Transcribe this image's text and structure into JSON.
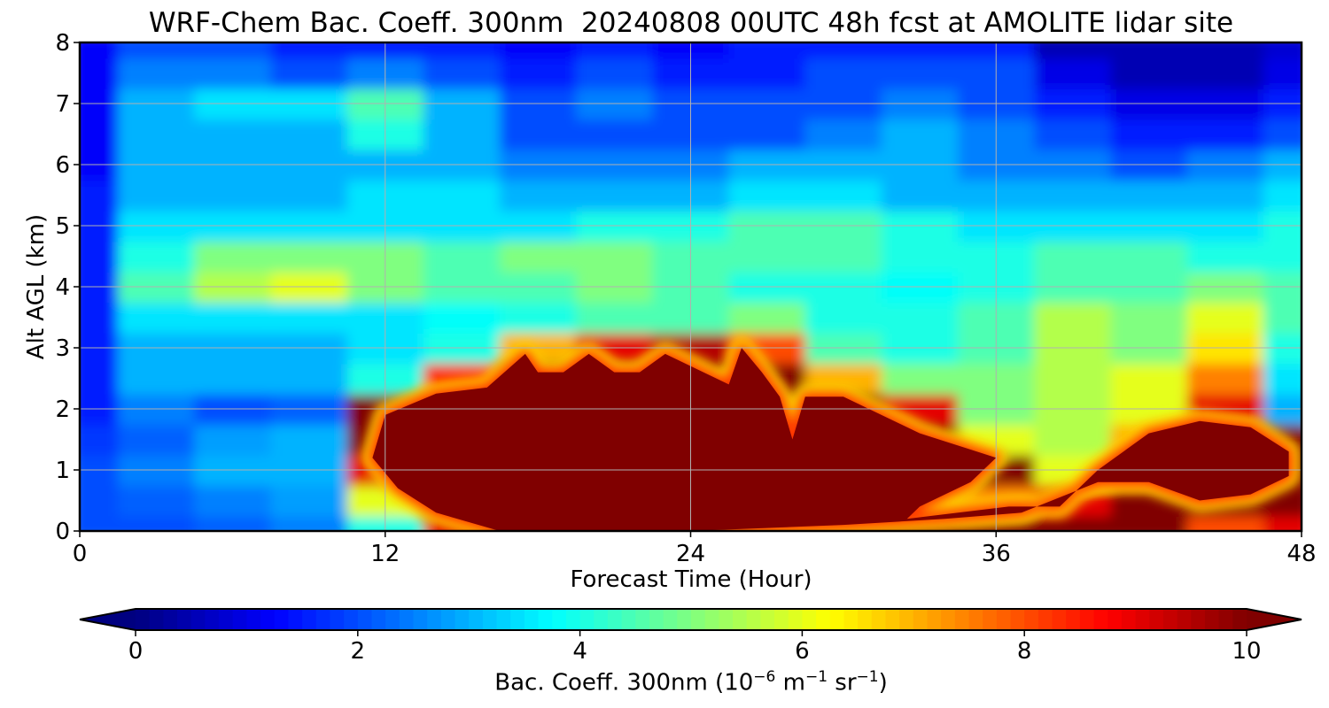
{
  "chart_data": {
    "type": "heatmap",
    "title": "WRF-Chem Bac. Coeff. 300nm  20240808 00UTC 48h fcst at AMOLITE lidar site",
    "xlabel": "Forecast Time (Hour)",
    "ylabel": "Alt AGL (km)",
    "xlim": [
      0,
      48
    ],
    "ylim": [
      0,
      8
    ],
    "xticks": [
      "0",
      "12",
      "24",
      "36",
      "48"
    ],
    "yticks": [
      "0",
      "1",
      "2",
      "3",
      "4",
      "5",
      "6",
      "7",
      "8"
    ],
    "grid": true,
    "colormap": "jet",
    "colorbar": {
      "orientation": "horizontal",
      "position": "bottom",
      "range": [
        0,
        10
      ],
      "extend": "both",
      "ticks": [
        "0",
        "2",
        "4",
        "6",
        "8",
        "10"
      ],
      "label_main": "Bac. Coeff. 300nm  (10",
      "label_exp1": "−6",
      "label_mid": " m",
      "label_exp2": "−1",
      "label_mid2": " sr",
      "label_exp3": "−1",
      "label_end": ")"
    },
    "x_hours": [
      0,
      3,
      6,
      9,
      12,
      15,
      18,
      21,
      24,
      27,
      30,
      33,
      36,
      39,
      42,
      45,
      48
    ],
    "y_km": [
      0,
      0.5,
      1,
      1.5,
      2,
      2.5,
      3,
      3.5,
      4,
      4.5,
      5,
      5.5,
      6,
      6.5,
      7,
      7.5,
      8
    ],
    "values": [
      [
        2.0,
        2.0,
        2.2,
        2.5,
        4.0,
        9.0,
        10.5,
        10.5,
        10.5,
        10.5,
        10.5,
        10.5,
        10.5,
        10.5,
        10.5,
        8.0,
        9.0
      ],
      [
        2.0,
        2.2,
        2.5,
        2.8,
        6.0,
        10.5,
        10.5,
        10.5,
        10.5,
        10.5,
        10.5,
        10.5,
        7.5,
        9.0,
        10.5,
        10.5,
        10.5
      ],
      [
        2.0,
        2.5,
        3.0,
        3.0,
        9.0,
        10.5,
        10.5,
        10.5,
        10.5,
        10.5,
        10.5,
        10.5,
        10.5,
        6.0,
        8.0,
        10.5,
        10.5
      ],
      [
        1.8,
        2.2,
        2.8,
        3.0,
        10.5,
        10.5,
        10.5,
        10.5,
        10.5,
        10.5,
        10.5,
        10.5,
        6.0,
        5.5,
        7.0,
        10.5,
        10.5
      ],
      [
        1.5,
        2.5,
        2.0,
        2.2,
        10.5,
        10.5,
        10.5,
        10.5,
        10.5,
        10.5,
        10.5,
        9.0,
        5.0,
        5.5,
        6.0,
        9.0,
        3.0
      ],
      [
        1.5,
        3.0,
        3.0,
        3.0,
        4.0,
        8.5,
        10.5,
        10.5,
        10.5,
        10.5,
        7.0,
        5.0,
        5.0,
        5.5,
        6.0,
        7.5,
        3.5
      ],
      [
        1.5,
        3.0,
        3.0,
        3.0,
        3.5,
        4.0,
        7.0,
        9.0,
        9.5,
        8.0,
        4.5,
        4.0,
        4.5,
        5.5,
        5.0,
        6.5,
        4.0
      ],
      [
        1.5,
        3.5,
        3.5,
        3.5,
        3.5,
        3.8,
        4.0,
        4.5,
        4.5,
        5.0,
        4.0,
        4.0,
        4.5,
        5.5,
        5.0,
        6.0,
        4.5
      ],
      [
        1.5,
        4.5,
        5.5,
        6.0,
        5.0,
        4.5,
        4.5,
        5.0,
        4.5,
        4.0,
        4.0,
        3.8,
        4.0,
        4.5,
        4.5,
        5.0,
        4.5
      ],
      [
        1.5,
        4.0,
        5.0,
        5.0,
        5.0,
        4.5,
        5.0,
        5.0,
        4.5,
        4.5,
        4.5,
        4.0,
        4.0,
        4.5,
        4.5,
        4.0,
        4.0
      ],
      [
        1.5,
        3.5,
        3.5,
        3.5,
        3.5,
        3.5,
        3.5,
        4.0,
        4.0,
        4.5,
        4.5,
        4.0,
        3.5,
        3.5,
        3.5,
        3.5,
        4.0
      ],
      [
        1.5,
        3.0,
        3.0,
        3.0,
        3.5,
        3.5,
        3.0,
        3.0,
        3.0,
        3.5,
        3.5,
        3.0,
        3.0,
        3.0,
        3.0,
        3.0,
        3.5
      ],
      [
        1.2,
        3.0,
        3.0,
        3.0,
        3.0,
        3.0,
        2.5,
        2.5,
        2.5,
        3.0,
        3.0,
        3.0,
        2.5,
        2.5,
        2.0,
        2.5,
        3.0
      ],
      [
        1.2,
        3.0,
        3.0,
        3.0,
        4.0,
        3.0,
        2.0,
        2.0,
        2.0,
        2.0,
        2.5,
        3.0,
        2.5,
        2.0,
        1.5,
        1.5,
        2.0
      ],
      [
        1.2,
        3.0,
        3.5,
        3.5,
        4.5,
        3.0,
        2.0,
        2.5,
        2.0,
        2.0,
        2.0,
        2.5,
        2.0,
        1.5,
        1.0,
        1.0,
        1.5
      ],
      [
        1.2,
        2.5,
        2.5,
        2.0,
        2.5,
        2.0,
        1.5,
        2.0,
        1.5,
        1.5,
        2.0,
        2.0,
        2.0,
        1.0,
        0.5,
        0.5,
        1.0
      ],
      [
        1.2,
        2.0,
        2.0,
        1.5,
        1.5,
        1.5,
        1.2,
        1.5,
        1.2,
        1.5,
        1.5,
        1.5,
        1.5,
        0.5,
        0.5,
        0.5,
        0.8
      ]
    ],
    "saturated_plume": {
      "value": "above 10",
      "hours": [
        11.5,
        12.0,
        14.0,
        16.0,
        17.5,
        18.0,
        19.0,
        20.0,
        21.0,
        22.0,
        23.0,
        24.5,
        25.5,
        26.0,
        26.8,
        27.5,
        28.0,
        28.5,
        30.0,
        33.0,
        36.0,
        35.0,
        33.0,
        32.5,
        33.5,
        36.5,
        38.5,
        40.0,
        42.0,
        44.0,
        46.0,
        47.5,
        47.5,
        46.0,
        44.0,
        42.0,
        40.0,
        37.0,
        34.0,
        30.0,
        24.0,
        20.0,
        16.5,
        14.0,
        12.5
      ],
      "alt_km": [
        1.2,
        1.9,
        2.25,
        2.35,
        2.9,
        2.6,
        2.6,
        2.9,
        2.6,
        2.6,
        2.9,
        2.6,
        2.4,
        3.0,
        2.6,
        2.2,
        1.5,
        2.2,
        2.2,
        1.6,
        1.2,
        0.8,
        0.4,
        0.2,
        0.25,
        0.4,
        0.4,
        1.0,
        1.6,
        1.8,
        1.7,
        1.3,
        0.9,
        0.6,
        0.5,
        0.8,
        0.8,
        0.3,
        0.2,
        0.1,
        0.0,
        0.0,
        0.0,
        0.3,
        0.7
      ]
    }
  }
}
